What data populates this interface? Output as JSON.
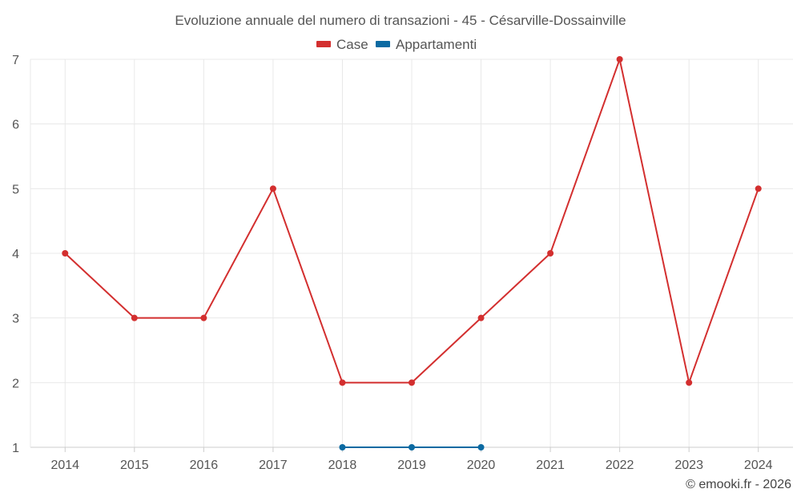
{
  "chart_data": {
    "type": "line",
    "title": "Evoluzione annuale del numero di transazioni - 45 - Césarville-Dossainville",
    "credit": "© emooki.fr - 2026",
    "categories": [
      "2014",
      "2015",
      "2016",
      "2017",
      "2018",
      "2019",
      "2020",
      "2021",
      "2022",
      "2023",
      "2024"
    ],
    "ylim": [
      1,
      7
    ],
    "yticks": [
      1,
      2,
      3,
      4,
      5,
      6,
      7
    ],
    "grid": true,
    "legend_position": "top-center",
    "series": [
      {
        "name": "Case",
        "color": "#d32f2f",
        "values": [
          4,
          3,
          3,
          5,
          2,
          2,
          3,
          4,
          7,
          2,
          5
        ]
      },
      {
        "name": "Appartamenti",
        "color": "#0b6aa2",
        "values": [
          null,
          null,
          null,
          null,
          1,
          1,
          1,
          null,
          null,
          null,
          null
        ]
      }
    ]
  }
}
